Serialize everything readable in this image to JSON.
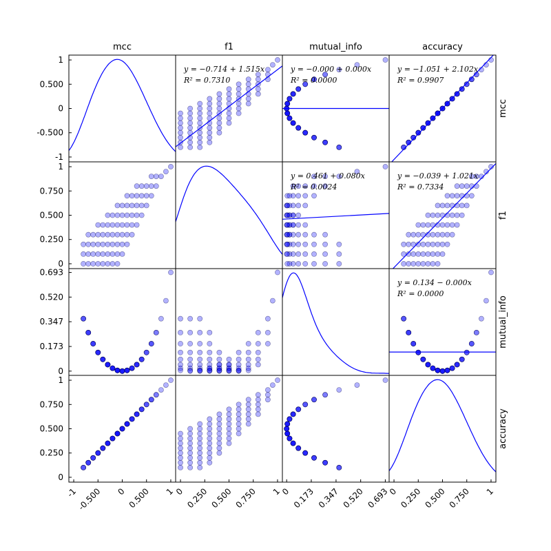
{
  "chart_data": {
    "type": "scatter",
    "variables": [
      "mcc",
      "f1",
      "mutual_info",
      "accuracy"
    ],
    "diagonal": "kde",
    "marker_color": "#0000ff",
    "line_color": "#0000ff",
    "axes": {
      "mcc": {
        "range": [
          -1.1,
          1.1
        ],
        "ticks": [
          -1,
          -0.5,
          0,
          0.5,
          1
        ],
        "tick_labels": [
          "-1",
          "-0.500",
          "0",
          "0.500",
          "1"
        ]
      },
      "f1": {
        "range": [
          -0.05,
          1.05
        ],
        "ticks": [
          0,
          0.25,
          0.5,
          0.75,
          1
        ],
        "tick_labels": [
          "0",
          "0.250",
          "0.500",
          "0.750",
          "1"
        ]
      },
      "mutual_info": {
        "range": [
          -0.03,
          0.72
        ],
        "ticks": [
          0,
          0.173,
          0.347,
          0.52,
          0.693
        ],
        "tick_labels": [
          "0",
          "0.173",
          "0.347",
          "0.520",
          "0.693"
        ]
      },
      "accuracy": {
        "range": [
          -0.05,
          1.05
        ],
        "ticks": [
          0,
          0.25,
          0.5,
          0.75,
          1
        ],
        "tick_labels": [
          "0",
          "0.250",
          "0.500",
          "0.750",
          "1"
        ]
      }
    },
    "regressions": [
      {
        "row": "mcc",
        "col": "f1",
        "eq": "y = −0.714 + 1.515x",
        "r2": "R² = 0.7310",
        "intercept": -0.714,
        "slope": 1.515
      },
      {
        "row": "mcc",
        "col": "mutual_info",
        "eq": "y = −0.000 + 0.000x",
        "r2": "R² = 0.0000",
        "intercept": 0.0,
        "slope": 0.0
      },
      {
        "row": "mcc",
        "col": "accuracy",
        "eq": "y = −1.051 + 2.102x",
        "r2": "R² = 0.9907",
        "intercept": -1.051,
        "slope": 2.102
      },
      {
        "row": "f1",
        "col": "mutual_info",
        "eq": "y = 0.461 + 0.080x",
        "r2": "R² = 0.0024",
        "intercept": 0.461,
        "slope": 0.08
      },
      {
        "row": "f1",
        "col": "accuracy",
        "eq": "y = −0.039 + 1.021x",
        "r2": "R² = 0.7334",
        "intercept": -0.039,
        "slope": 1.021
      },
      {
        "row": "mutual_info",
        "col": "accuracy",
        "eq": "y = 0.134 − 0.000x",
        "r2": "R² = 0.0000",
        "intercept": 0.134,
        "slope": 0.0
      }
    ],
    "points": [
      {
        "acc": 0.1,
        "f1": 0.0
      },
      {
        "acc": 0.1,
        "f1": 0.1
      },
      {
        "acc": 0.1,
        "f1": 0.2
      },
      {
        "acc": 0.15,
        "f1": 0.0
      },
      {
        "acc": 0.15,
        "f1": 0.1
      },
      {
        "acc": 0.15,
        "f1": 0.2
      },
      {
        "acc": 0.15,
        "f1": 0.3
      },
      {
        "acc": 0.2,
        "f1": 0.0
      },
      {
        "acc": 0.2,
        "f1": 0.1
      },
      {
        "acc": 0.2,
        "f1": 0.2
      },
      {
        "acc": 0.2,
        "f1": 0.3
      },
      {
        "acc": 0.25,
        "f1": 0.0
      },
      {
        "acc": 0.25,
        "f1": 0.1
      },
      {
        "acc": 0.25,
        "f1": 0.2
      },
      {
        "acc": 0.25,
        "f1": 0.3
      },
      {
        "acc": 0.25,
        "f1": 0.4
      },
      {
        "acc": 0.3,
        "f1": 0.0
      },
      {
        "acc": 0.3,
        "f1": 0.1
      },
      {
        "acc": 0.3,
        "f1": 0.2
      },
      {
        "acc": 0.3,
        "f1": 0.3
      },
      {
        "acc": 0.3,
        "f1": 0.4
      },
      {
        "acc": 0.35,
        "f1": 0.0
      },
      {
        "acc": 0.35,
        "f1": 0.1
      },
      {
        "acc": 0.35,
        "f1": 0.2
      },
      {
        "acc": 0.35,
        "f1": 0.3
      },
      {
        "acc": 0.35,
        "f1": 0.4
      },
      {
        "acc": 0.35,
        "f1": 0.5
      },
      {
        "acc": 0.4,
        "f1": 0.0
      },
      {
        "acc": 0.4,
        "f1": 0.1
      },
      {
        "acc": 0.4,
        "f1": 0.2
      },
      {
        "acc": 0.4,
        "f1": 0.3
      },
      {
        "acc": 0.4,
        "f1": 0.4
      },
      {
        "acc": 0.4,
        "f1": 0.5
      },
      {
        "acc": 0.45,
        "f1": 0.0
      },
      {
        "acc": 0.45,
        "f1": 0.1
      },
      {
        "acc": 0.45,
        "f1": 0.2
      },
      {
        "acc": 0.45,
        "f1": 0.3
      },
      {
        "acc": 0.45,
        "f1": 0.4
      },
      {
        "acc": 0.45,
        "f1": 0.5
      },
      {
        "acc": 0.45,
        "f1": 0.6
      },
      {
        "acc": 0.5,
        "f1": 0.1
      },
      {
        "acc": 0.5,
        "f1": 0.2
      },
      {
        "acc": 0.5,
        "f1": 0.3
      },
      {
        "acc": 0.5,
        "f1": 0.4
      },
      {
        "acc": 0.5,
        "f1": 0.5
      },
      {
        "acc": 0.5,
        "f1": 0.6
      },
      {
        "acc": 0.55,
        "f1": 0.2
      },
      {
        "acc": 0.55,
        "f1": 0.3
      },
      {
        "acc": 0.55,
        "f1": 0.4
      },
      {
        "acc": 0.55,
        "f1": 0.5
      },
      {
        "acc": 0.55,
        "f1": 0.6
      },
      {
        "acc": 0.55,
        "f1": 0.7
      },
      {
        "acc": 0.6,
        "f1": 0.3
      },
      {
        "acc": 0.6,
        "f1": 0.4
      },
      {
        "acc": 0.6,
        "f1": 0.5
      },
      {
        "acc": 0.6,
        "f1": 0.6
      },
      {
        "acc": 0.6,
        "f1": 0.7
      },
      {
        "acc": 0.65,
        "f1": 0.4
      },
      {
        "acc": 0.65,
        "f1": 0.5
      },
      {
        "acc": 0.65,
        "f1": 0.6
      },
      {
        "acc": 0.65,
        "f1": 0.7
      },
      {
        "acc": 0.65,
        "f1": 0.8
      },
      {
        "acc": 0.7,
        "f1": 0.5
      },
      {
        "acc": 0.7,
        "f1": 0.6
      },
      {
        "acc": 0.7,
        "f1": 0.7
      },
      {
        "acc": 0.7,
        "f1": 0.8
      },
      {
        "acc": 0.75,
        "f1": 0.6
      },
      {
        "acc": 0.75,
        "f1": 0.7
      },
      {
        "acc": 0.75,
        "f1": 0.8
      },
      {
        "acc": 0.8,
        "f1": 0.7
      },
      {
        "acc": 0.8,
        "f1": 0.8
      },
      {
        "acc": 0.8,
        "f1": 0.9
      },
      {
        "acc": 0.85,
        "f1": 0.8
      },
      {
        "acc": 0.85,
        "f1": 0.9
      },
      {
        "acc": 0.9,
        "f1": 0.9
      },
      {
        "acc": 0.95,
        "f1": 0.95
      },
      {
        "acc": 1.0,
        "f1": 1.0
      }
    ]
  }
}
